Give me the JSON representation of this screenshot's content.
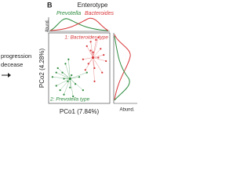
{
  "chart_data": {
    "type": "scatter",
    "panel_label": "B",
    "title": "Enterotype",
    "xlabel": "PCo1 (7.84%)",
    "ylabel": "PCo2 (4.28%)",
    "top_axis_label": "Abund.",
    "right_axis_label": "Abund.",
    "side_text": [
      "progression",
      "decease"
    ],
    "xlim": [
      -0.4,
      0.4
    ],
    "ylim": [
      -0.4,
      0.4
    ],
    "series": [
      {
        "name": "Prevotella",
        "color": "#2e8b3e",
        "cluster_label": "2: Prevotella type",
        "centroid": [
          -0.12,
          -0.12
        ],
        "x": [
          -0.35,
          -0.3,
          -0.28,
          -0.25,
          -0.22,
          -0.2,
          -0.18,
          -0.15,
          -0.12,
          -0.1,
          -0.08,
          -0.05,
          0.0,
          0.05,
          0.1,
          -0.14,
          -0.3,
          -0.2
        ],
        "values": [
          -0.1,
          -0.2,
          0.0,
          -0.25,
          -0.05,
          -0.3,
          0.05,
          -0.15,
          -0.22,
          -0.08,
          -0.32,
          -0.18,
          -0.1,
          -0.25,
          -0.05,
          0.1,
          -0.05,
          -0.12
        ]
      },
      {
        "name": "Bacteroides",
        "color": "#d9373a",
        "cluster_label": "1: Bacteroides type",
        "centroid": [
          0.18,
          0.12
        ],
        "x": [
          0.05,
          0.1,
          0.12,
          0.15,
          0.18,
          0.2,
          0.22,
          0.25,
          0.28,
          0.3,
          0.32,
          0.35,
          0.08,
          0.2,
          0.25,
          0.15
        ],
        "values": [
          0.1,
          0.25,
          0.05,
          0.3,
          0.18,
          0.0,
          0.32,
          0.12,
          0.22,
          -0.05,
          0.15,
          0.08,
          -0.02,
          -0.15,
          0.35,
          0.2
        ]
      }
    ]
  }
}
